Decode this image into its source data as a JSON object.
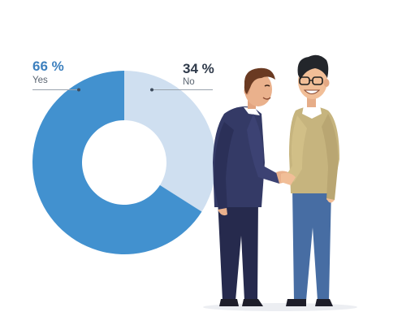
{
  "chart_data": {
    "type": "pie",
    "categories": [
      "Yes",
      "No"
    ],
    "values": [
      66,
      34
    ],
    "labels": [
      "66 %",
      "34 %"
    ],
    "colors": [
      "#4291cf",
      "#cfdff0"
    ],
    "label_colors": [
      "#3d80be",
      "#2f3a4a"
    ],
    "donut": true
  },
  "illustration": {
    "description": "two-businessmen-handshake",
    "figure_left": {
      "suit": "#343a66",
      "trousers": "#262a4d",
      "hair": "#6a3a22",
      "skin": "#eab18c"
    },
    "figure_right": {
      "sweater": "#c6b47e",
      "jeans": "#476da3",
      "hair": "#23262b",
      "skin": "#f1be97",
      "glasses": "#1e1e1e"
    }
  }
}
